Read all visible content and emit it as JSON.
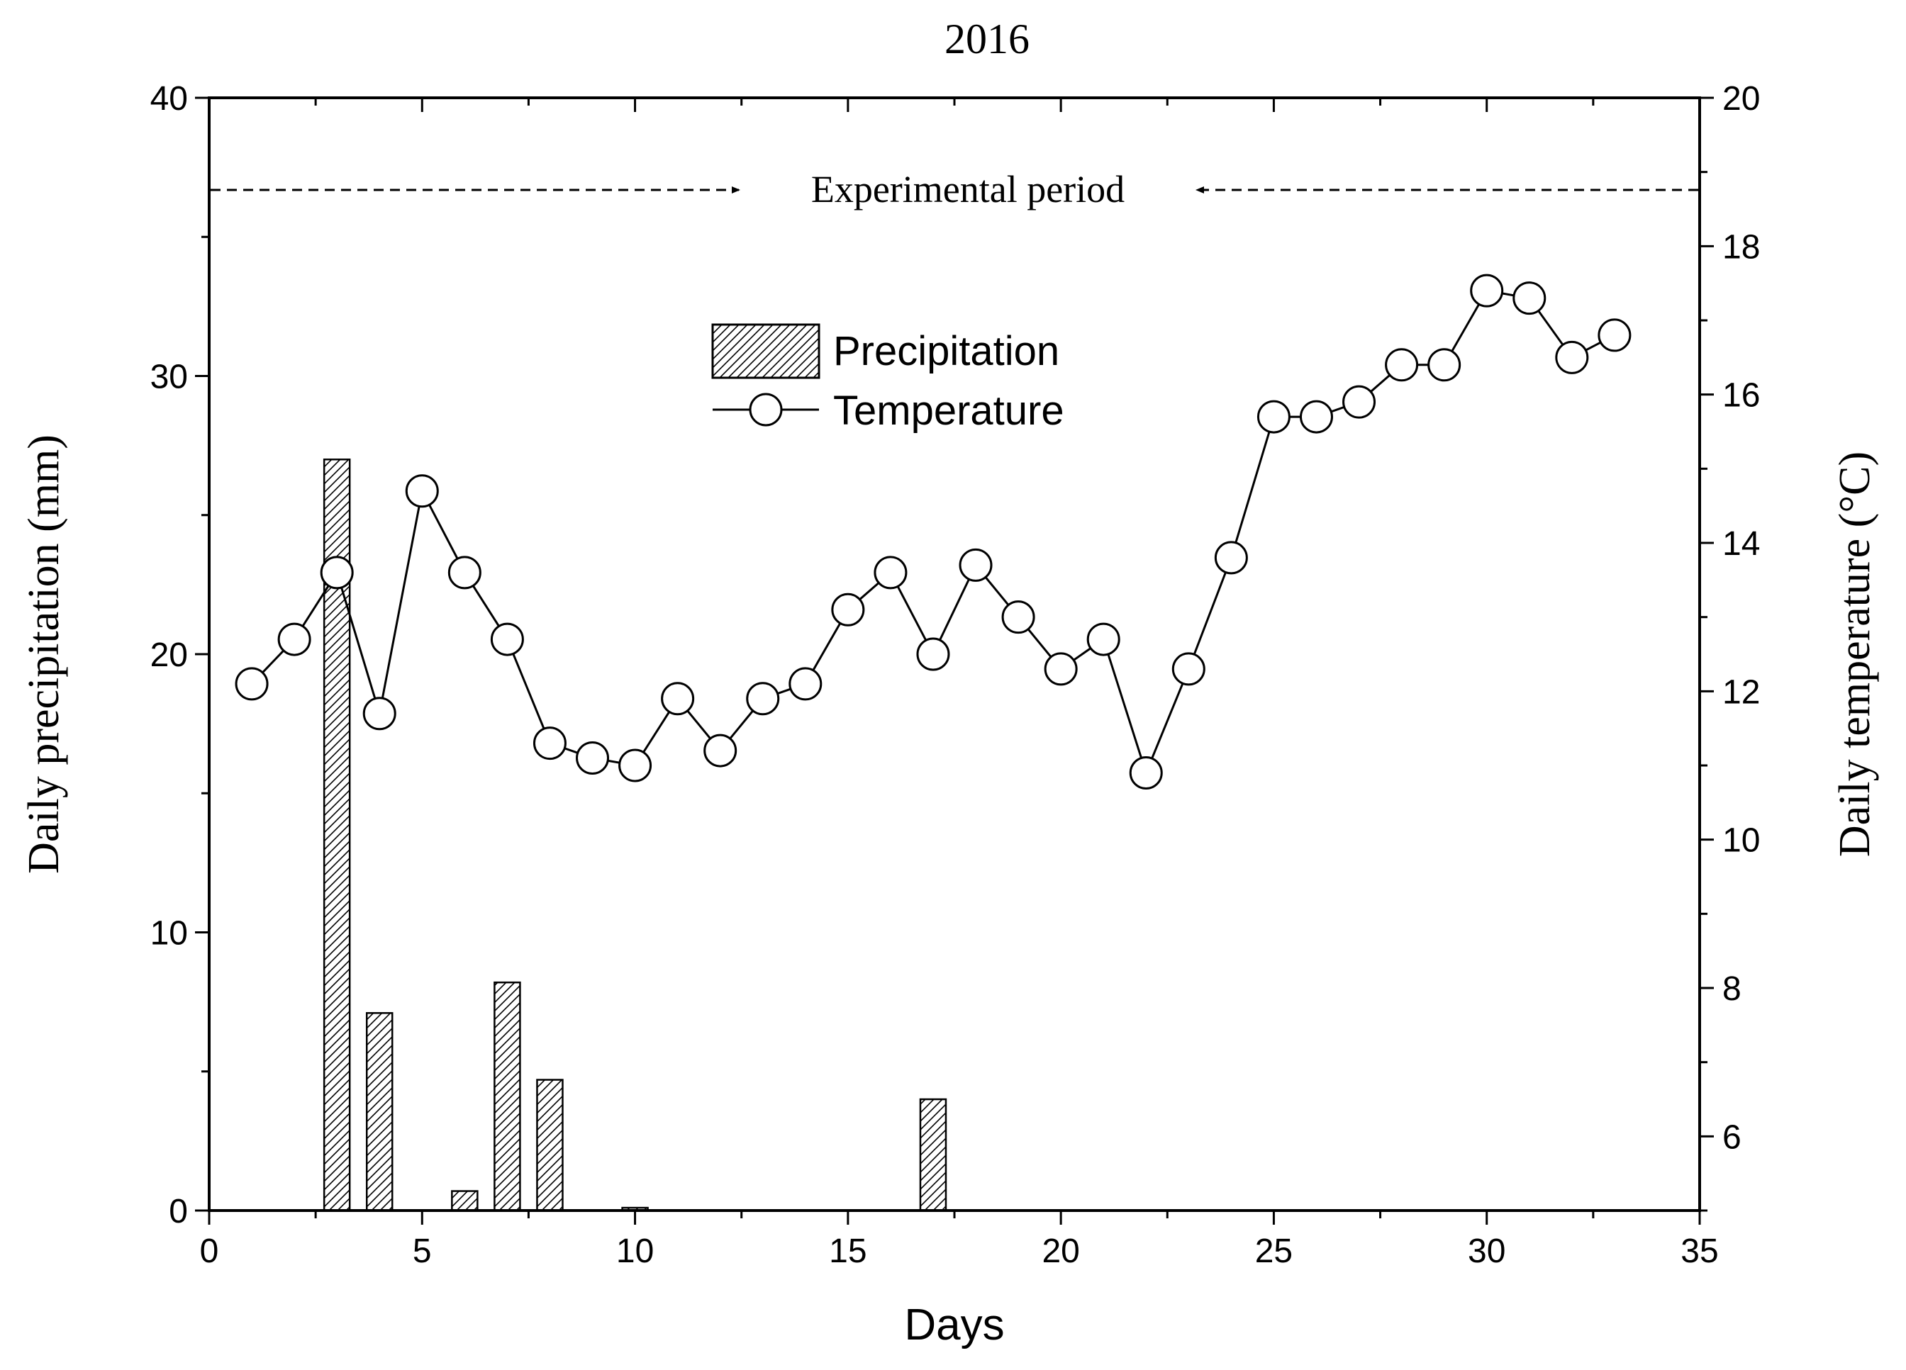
{
  "chart_data": {
    "type": "bar+line",
    "title": "2016",
    "xlabel": "Days",
    "ylabel_left": "Daily precipitation (mm)",
    "ylabel_right": "Daily temperature (°C)",
    "xlim": [
      0,
      35
    ],
    "ylim_left": [
      0,
      40
    ],
    "ylim_right": [
      5,
      20
    ],
    "x_ticks": [
      0,
      5,
      10,
      15,
      20,
      25,
      30,
      35
    ],
    "x_tick_labels": [
      "0",
      "5",
      "10",
      "15",
      "20",
      "25",
      "30",
      "35"
    ],
    "y_left_ticks": [
      0,
      10,
      20,
      30,
      40
    ],
    "y_left_tick_labels": [
      "0",
      "10",
      "20",
      "30",
      "40"
    ],
    "y_right_ticks": [
      6,
      8,
      10,
      12,
      14,
      16,
      18,
      20
    ],
    "y_right_tick_labels": [
      "6",
      "8",
      "10",
      "12",
      "14",
      "16",
      "18",
      "20"
    ],
    "grid": false,
    "legend": {
      "position": "top-center",
      "entries": [
        "Precipitation",
        "Temperature"
      ]
    },
    "annotation": {
      "text": "Experimental period",
      "y_value_left": 36.7,
      "description": "dashed arrows from both axes pointing toward text"
    },
    "series": [
      {
        "name": "Precipitation",
        "kind": "bar",
        "axis": "left",
        "x": [
          3,
          4,
          6,
          7,
          8,
          10,
          17
        ],
        "values": [
          27.0,
          7.1,
          0.7,
          8.2,
          4.7,
          0.1,
          4.0
        ]
      },
      {
        "name": "Temperature",
        "kind": "line",
        "axis": "right",
        "x": [
          1,
          2,
          3,
          4,
          5,
          6,
          7,
          8,
          9,
          10,
          11,
          12,
          13,
          14,
          15,
          16,
          17,
          18,
          19,
          20,
          21,
          22,
          23,
          24,
          25,
          26,
          27,
          28,
          29,
          30,
          31,
          32,
          33
        ],
        "values": [
          12.1,
          12.7,
          13.6,
          11.7,
          14.7,
          13.6,
          12.7,
          11.3,
          11.1,
          11.0,
          11.9,
          11.2,
          11.9,
          12.1,
          13.1,
          13.6,
          12.5,
          13.7,
          13.0,
          12.3,
          12.7,
          10.9,
          12.3,
          13.8,
          15.7,
          15.7,
          15.9,
          16.4,
          16.4,
          17.4,
          17.3,
          16.5,
          16.8
        ]
      }
    ]
  }
}
